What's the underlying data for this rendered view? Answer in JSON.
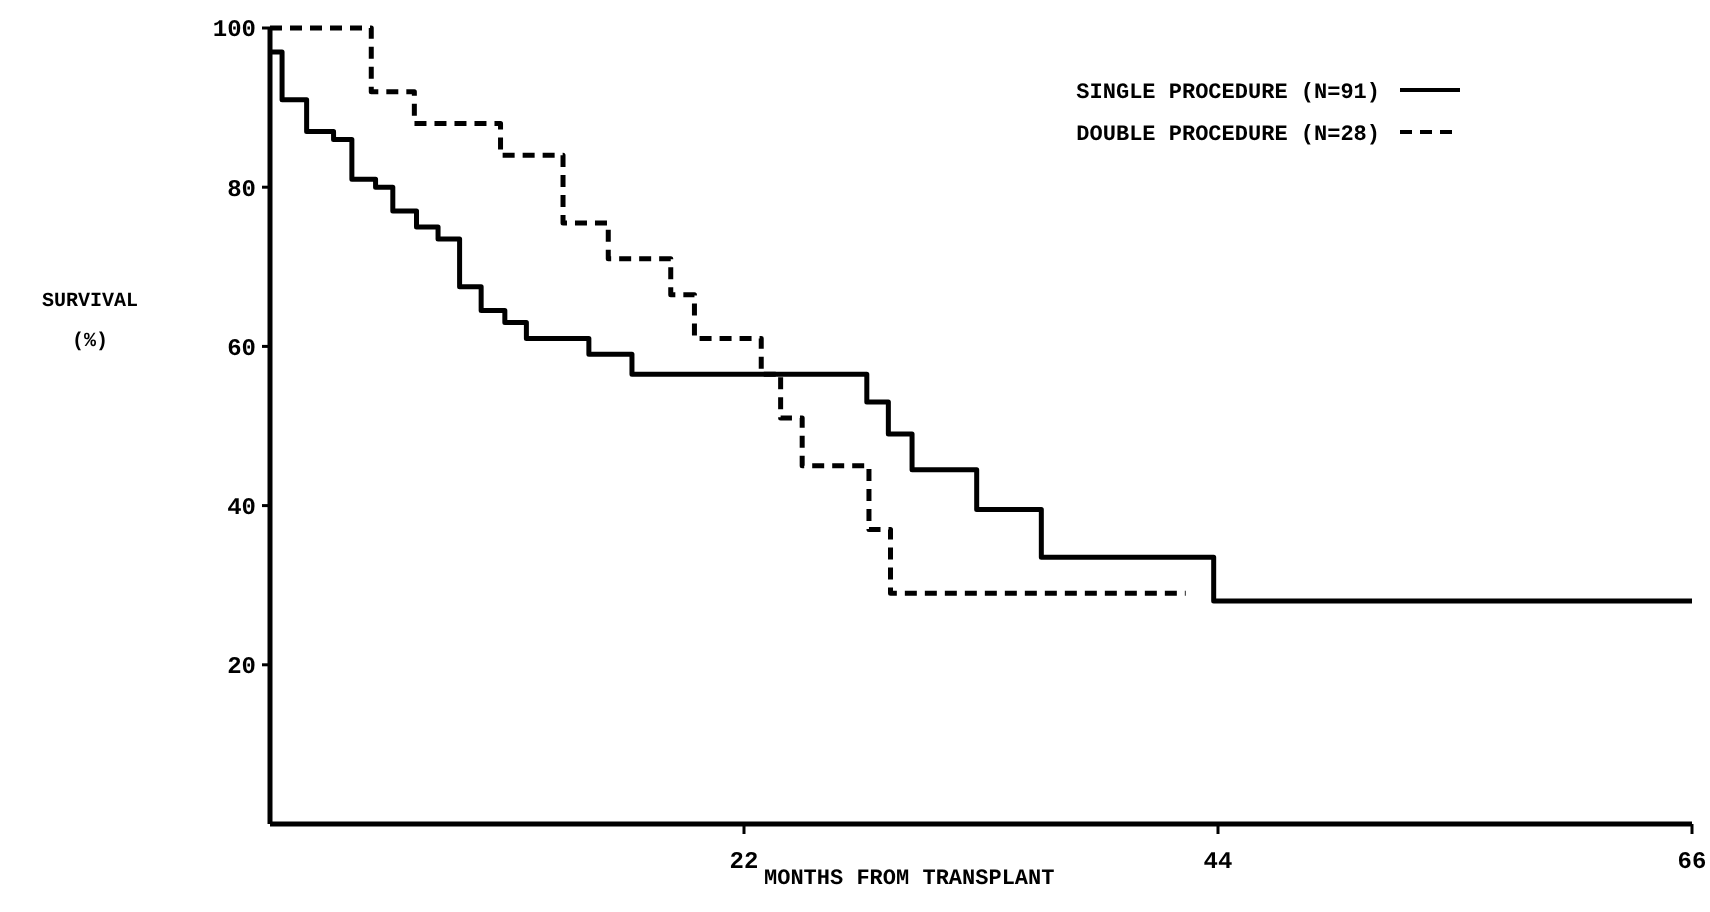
{
  "chart_data": {
    "type": "step",
    "xlabel": "MONTHS FROM TRANSPLANT",
    "ylabel": "SURVIVAL (%)",
    "xlim": [
      0,
      66
    ],
    "xticks": [
      22,
      44,
      66
    ],
    "ylim": [
      0,
      100
    ],
    "yticks": [
      20,
      40,
      60,
      80,
      100
    ],
    "grid": false,
    "legend": "top right",
    "marker": "none",
    "series": [
      {
        "name": "SINGLE PROCEDURE (N=91)",
        "color": "#000000",
        "line_style": "solid",
        "x": [
          0,
          0.56,
          1.7,
          2.95,
          3.8,
          4.9,
          5.7,
          6.8,
          7.8,
          8.8,
          9.8,
          10.9,
          11.9,
          14.8,
          16.8,
          27.7,
          28.7,
          29.8,
          32.8,
          35.8,
          43.8,
          66
        ],
        "values": [
          97,
          91,
          87,
          86,
          81,
          80,
          77,
          75,
          73.5,
          67.5,
          64.5,
          63,
          61,
          59,
          56.5,
          53,
          49,
          44.5,
          39.5,
          33.5,
          28,
          28
        ]
      },
      {
        "name": "DOUBLE PROCEDURE (N=28)",
        "color": "#000000",
        "line_style": "dashed",
        "x": [
          0,
          4.7,
          6.7,
          10.7,
          13.6,
          15.7,
          18.6,
          19.7,
          22.8,
          23.7,
          24.7,
          27.8,
          28.8,
          42.5
        ],
        "values": [
          100,
          92,
          88,
          84,
          75.5,
          71,
          66.5,
          61,
          56.5,
          51,
          45,
          37,
          29,
          29
        ]
      }
    ]
  }
}
